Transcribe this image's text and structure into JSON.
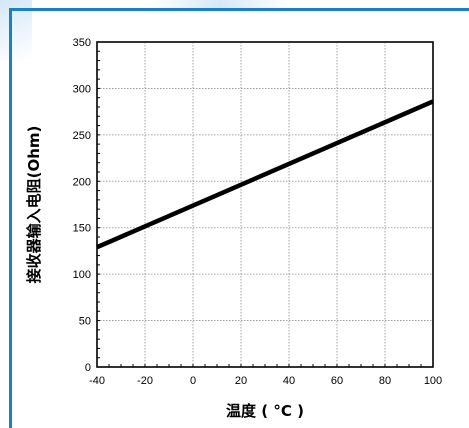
{
  "chart_data": {
    "type": "line",
    "title": "",
    "xlabel": "温度 ( °C )",
    "ylabel": "接收器输入电阻(Ohm)",
    "xlim": [
      -40,
      100
    ],
    "ylim": [
      0,
      350
    ],
    "x_ticks": [
      "-40",
      "-20",
      "0",
      "20",
      "40",
      "60",
      "80",
      "100"
    ],
    "y_ticks": [
      "0",
      "50",
      "100",
      "150",
      "200",
      "250",
      "300",
      "350"
    ],
    "grid": true,
    "series": [
      {
        "color": "#000000",
        "x": [
          -40,
          100
        ],
        "y": [
          129,
          286
        ]
      }
    ]
  },
  "colors": {
    "frame_border": "#1d7fc4",
    "grid": "#8c8c8c",
    "axis": "#000000"
  }
}
